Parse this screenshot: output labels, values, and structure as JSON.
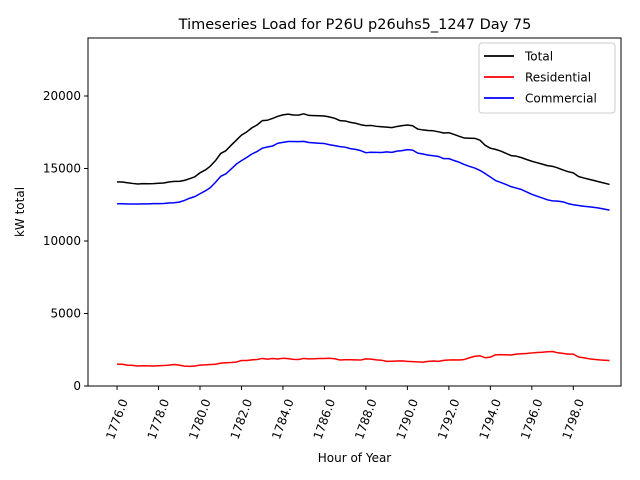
{
  "chart_data": {
    "type": "line",
    "title": "Timeseries Load for P26U p26uhs5_1247  Day 75",
    "xlabel": "Hour of Year",
    "ylabel": "kW total",
    "xlim": [
      1774.6,
      1800.3
    ],
    "ylim": [
      0,
      24000
    ],
    "xticks": [
      1776,
      1778,
      1780,
      1782,
      1784,
      1786,
      1788,
      1790,
      1792,
      1794,
      1796,
      1798
    ],
    "xtick_labels": [
      "1776.0",
      "1778.0",
      "1780.0",
      "1782.0",
      "1784.0",
      "1786.0",
      "1788.0",
      "1790.0",
      "1792.0",
      "1794.0",
      "1796.0",
      "1798.0"
    ],
    "yticks": [
      0,
      5000,
      10000,
      15000,
      20000
    ],
    "ytick_labels": [
      "0",
      "5000",
      "10000",
      "15000",
      "20000"
    ],
    "legend_position": "top-right",
    "x": [
      1776.0,
      1776.25,
      1776.5,
      1776.75,
      1777.0,
      1777.25,
      1777.5,
      1777.75,
      1778.0,
      1778.25,
      1778.5,
      1778.75,
      1779.0,
      1779.25,
      1779.5,
      1779.75,
      1780.0,
      1780.25,
      1780.5,
      1780.75,
      1781.0,
      1781.25,
      1781.5,
      1781.75,
      1782.0,
      1782.25,
      1782.5,
      1782.75,
      1783.0,
      1783.25,
      1783.5,
      1783.75,
      1784.0,
      1784.25,
      1784.5,
      1784.75,
      1785.0,
      1785.25,
      1785.5,
      1785.75,
      1786.0,
      1786.25,
      1786.5,
      1786.75,
      1787.0,
      1787.25,
      1787.5,
      1787.75,
      1788.0,
      1788.25,
      1788.5,
      1788.75,
      1789.0,
      1789.25,
      1789.5,
      1789.75,
      1790.0,
      1790.25,
      1790.5,
      1790.75,
      1791.0,
      1791.25,
      1791.5,
      1791.75,
      1792.0,
      1792.25,
      1792.5,
      1792.75,
      1793.0,
      1793.25,
      1793.5,
      1793.75,
      1794.0,
      1794.25,
      1794.5,
      1794.75,
      1795.0,
      1795.25,
      1795.5,
      1795.75,
      1796.0,
      1796.25,
      1796.5,
      1796.75,
      1797.0,
      1797.25,
      1797.5,
      1797.75,
      1798.0,
      1798.25,
      1798.5,
      1798.75,
      1799.0,
      1799.25,
      1799.5,
      1799.75
    ],
    "series": [
      {
        "name": "Total",
        "color": "#000000",
        "values": [
          14080,
          14070,
          14020,
          13970,
          13930,
          13960,
          13950,
          13960,
          13980,
          14000,
          14070,
          14110,
          14110,
          14180,
          14300,
          14430,
          14700,
          14890,
          15160,
          15550,
          16040,
          16230,
          16600,
          16950,
          17300,
          17520,
          17800,
          18000,
          18300,
          18330,
          18450,
          18600,
          18700,
          18750,
          18690,
          18680,
          18770,
          18660,
          18650,
          18640,
          18620,
          18550,
          18460,
          18300,
          18280,
          18180,
          18120,
          18020,
          17960,
          17970,
          17910,
          17880,
          17850,
          17820,
          17900,
          17960,
          18000,
          17950,
          17720,
          17660,
          17620,
          17600,
          17530,
          17450,
          17470,
          17350,
          17220,
          17100,
          17090,
          17080,
          16950,
          16600,
          16400,
          16320,
          16200,
          16050,
          15890,
          15850,
          15750,
          15620,
          15500,
          15400,
          15300,
          15200,
          15150,
          15040,
          14900,
          14780,
          14700,
          14450,
          14350,
          14260,
          14170,
          14080,
          13990,
          13900
        ]
      },
      {
        "name": "Residential",
        "color": "#ff0000",
        "values": [
          1510,
          1500,
          1440,
          1420,
          1380,
          1400,
          1390,
          1380,
          1400,
          1410,
          1440,
          1480,
          1440,
          1370,
          1350,
          1380,
          1440,
          1460,
          1480,
          1500,
          1580,
          1600,
          1620,
          1650,
          1760,
          1760,
          1800,
          1830,
          1900,
          1850,
          1900,
          1860,
          1910,
          1890,
          1840,
          1830,
          1900,
          1870,
          1880,
          1900,
          1900,
          1910,
          1880,
          1790,
          1810,
          1810,
          1800,
          1790,
          1870,
          1850,
          1800,
          1780,
          1700,
          1710,
          1720,
          1730,
          1700,
          1680,
          1660,
          1650,
          1700,
          1720,
          1700,
          1770,
          1790,
          1800,
          1790,
          1830,
          1950,
          2050,
          2080,
          1950,
          1990,
          2150,
          2160,
          2150,
          2140,
          2200,
          2220,
          2240,
          2280,
          2310,
          2330,
          2360,
          2380,
          2290,
          2250,
          2200,
          2200,
          2000,
          1950,
          1880,
          1840,
          1800,
          1780,
          1760
        ]
      },
      {
        "name": "Commercial",
        "color": "#0000ff",
        "values": [
          12570,
          12570,
          12550,
          12550,
          12550,
          12560,
          12560,
          12580,
          12580,
          12590,
          12620,
          12640,
          12680,
          12800,
          12950,
          13060,
          13260,
          13450,
          13680,
          14050,
          14460,
          14630,
          14960,
          15300,
          15540,
          15760,
          16000,
          16170,
          16400,
          16480,
          16550,
          16740,
          16800,
          16860,
          16860,
          16850,
          16870,
          16790,
          16770,
          16740,
          16720,
          16640,
          16580,
          16510,
          16470,
          16370,
          16320,
          16230,
          16090,
          16120,
          16110,
          16100,
          16150,
          16110,
          16200,
          16230,
          16300,
          16270,
          16060,
          16000,
          15920,
          15880,
          15830,
          15680,
          15680,
          15550,
          15430,
          15270,
          15140,
          15030,
          14870,
          14650,
          14410,
          14170,
          14040,
          13900,
          13750,
          13650,
          13550,
          13380,
          13220,
          13090,
          12970,
          12840,
          12770,
          12750,
          12700,
          12580,
          12500,
          12450,
          12400,
          12360,
          12320,
          12270,
          12200,
          12130
        ]
      }
    ]
  }
}
